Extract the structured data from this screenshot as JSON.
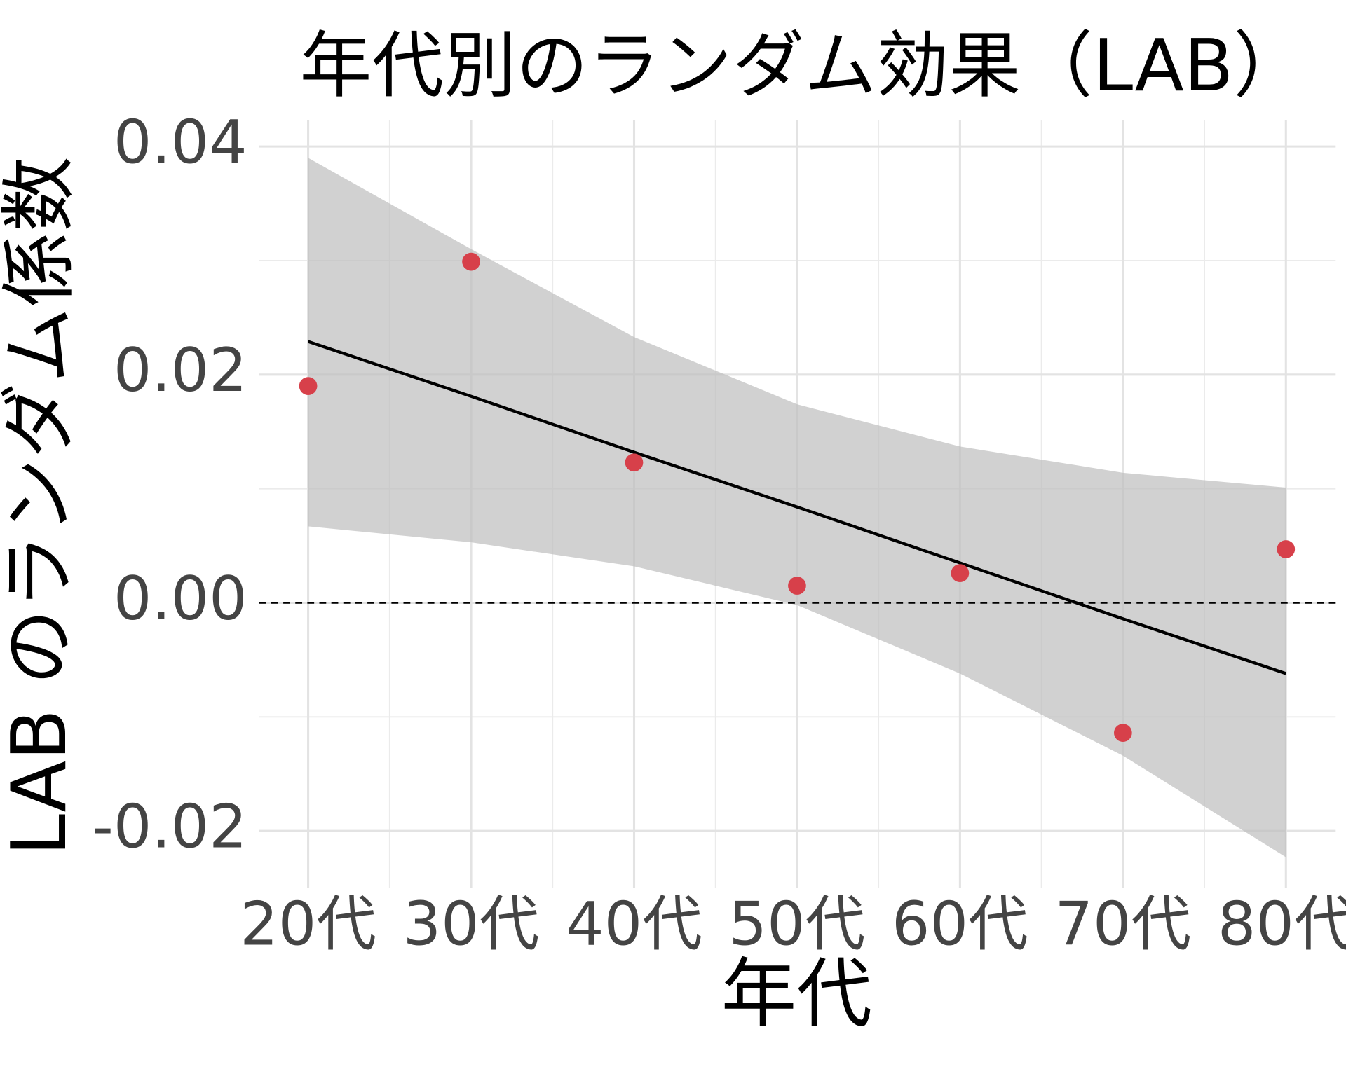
{
  "chart_data": {
    "type": "scatter",
    "title": "年代別のランダム効果（LAB）",
    "x_label": "年代",
    "y_label": "LAB のランダム係数",
    "categories": [
      "20代",
      "30代",
      "40代",
      "50代",
      "60代",
      "70代",
      "80代"
    ],
    "values": [
      0.019,
      0.0299,
      0.0123,
      0.0015,
      0.0026,
      -0.0114,
      0.0047
    ],
    "color": "#d7404a",
    "fit": [
      0.0229,
      0.0181,
      0.0132,
      0.0084,
      0.0035,
      -0.0014,
      -0.0062
    ],
    "fit_color": "#000000",
    "ci_upper": [
      0.039,
      0.031,
      0.0233,
      0.0174,
      0.0137,
      0.0114,
      0.0101
    ],
    "ci_lower": [
      0.0067,
      0.0053,
      0.0032,
      -0.0002,
      -0.0062,
      -0.0134,
      -0.0223
    ],
    "band_color": "#bdbdbd",
    "reference_line": 0,
    "ylim": [
      -0.025,
      0.0423
    ],
    "yticks": [
      {
        "value": -0.02,
        "label": "-0.02"
      },
      {
        "value": 0.0,
        "label": "0.00"
      },
      {
        "value": 0.02,
        "label": "0.02"
      },
      {
        "value": 0.04,
        "label": "0.04"
      }
    ],
    "grid": true
  }
}
